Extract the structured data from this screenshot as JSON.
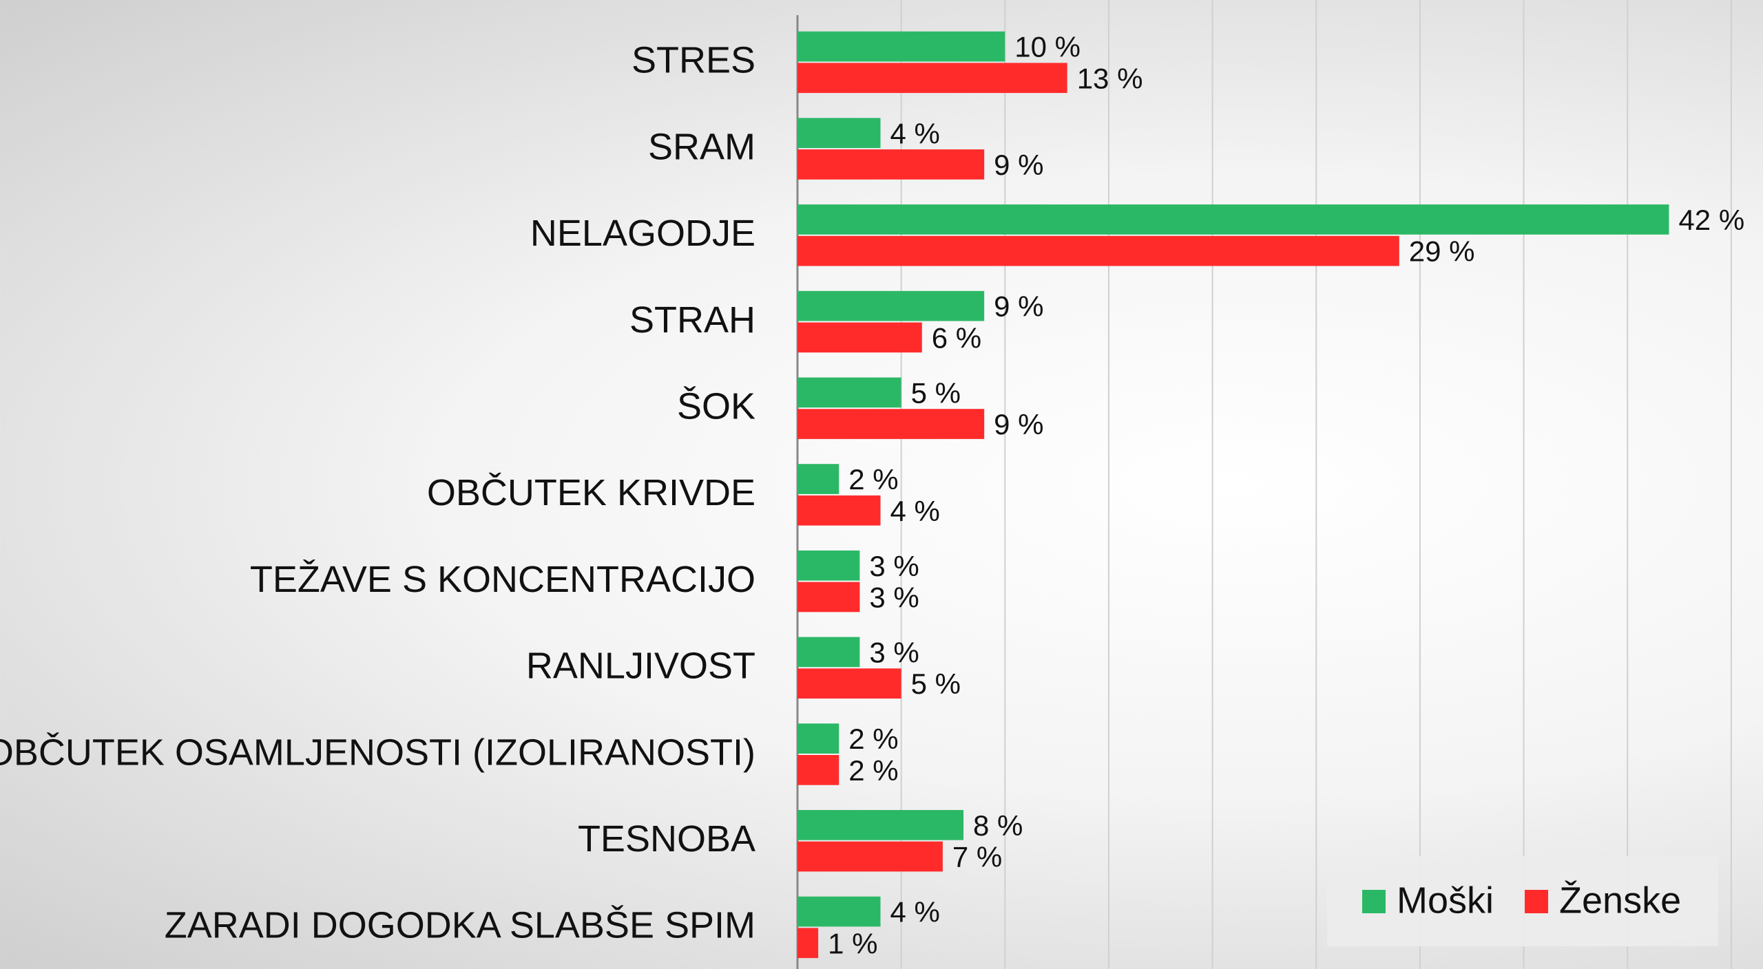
{
  "chart_data": {
    "type": "bar",
    "orientation": "horizontal",
    "categories": [
      "STRES",
      "SRAM",
      "NELAGODJE",
      "STRAH",
      "ŠOK",
      "OBČUTEK KRIVDE",
      "TEŽAVE S KONCENTRACIJO",
      "RANLJIVOST",
      "OBČUTEK OSAMLJENOSTI (IZOLIRANOSTI)",
      "TESNOBA",
      "ZARADI DOGODKA SLABŠE SPIM"
    ],
    "series": [
      {
        "name": "Moški",
        "color": "#2bb866",
        "values": [
          10,
          4,
          42,
          9,
          5,
          2,
          3,
          3,
          2,
          8,
          4
        ],
        "value_labels": [
          "10 %",
          "4 %",
          "42 %",
          "9 %",
          "5 %",
          "2 %",
          "3 %",
          "3 %",
          "2 %",
          "8 %",
          "4 %"
        ]
      },
      {
        "name": "Ženske",
        "color": "#ff2b2b",
        "values": [
          13,
          9,
          29,
          6,
          9,
          4,
          3,
          5,
          2,
          7,
          1
        ],
        "value_labels": [
          "13 %",
          "9 %",
          "29 %",
          "6 %",
          "9 %",
          "4 %",
          "3 %",
          "5 %",
          "2 %",
          "7 %",
          "1 %"
        ]
      }
    ],
    "xlim": [
      0,
      45
    ],
    "xticks": [
      0,
      5,
      10,
      15,
      20,
      25,
      30,
      35,
      40,
      45
    ],
    "grid": true,
    "legend": "lower right"
  }
}
